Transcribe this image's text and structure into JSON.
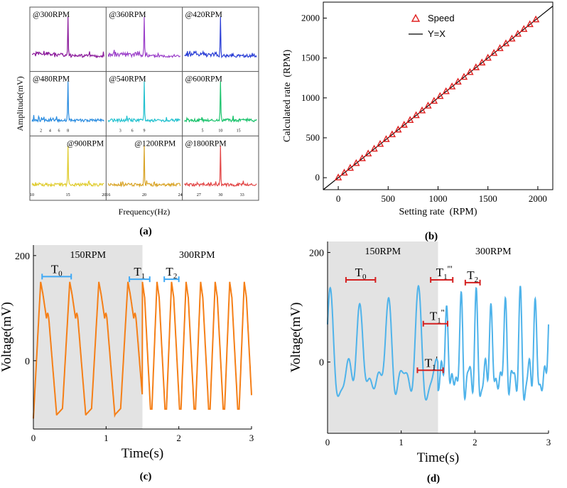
{
  "panel_labels": {
    "a": "(a)",
    "b": "(b)",
    "c": "(c)",
    "d": "(d)"
  },
  "chart_data": [
    {
      "id": "a",
      "type": "line",
      "xlabel": "Frequency(Hz)",
      "ylabel": "Amplitude(mV)",
      "layout": "3x3 small multiples",
      "subplots": [
        {
          "label": "@300RPM",
          "color": "#8b1a9b",
          "xlim": [
            0,
            10
          ],
          "peak_x": 5,
          "ticks": []
        },
        {
          "label": "@360RPM",
          "color": "#9b3fc9",
          "xlim": [
            0,
            12
          ],
          "peak_x": 6,
          "ticks": []
        },
        {
          "label": "@420RPM",
          "color": "#2b3fd6",
          "xlim": [
            0,
            14
          ],
          "peak_x": 7,
          "ticks": []
        },
        {
          "label": "@480RPM",
          "color": "#2a8ce0",
          "xlim": [
            0,
            16
          ],
          "peak_x": 8,
          "ticks": [
            "2",
            "4",
            "6",
            "8"
          ]
        },
        {
          "label": "@540RPM",
          "color": "#22c1cf",
          "xlim": [
            0,
            18
          ],
          "peak_x": 9,
          "ticks": [
            "3",
            "6",
            "9"
          ]
        },
        {
          "label": "@600RPM",
          "color": "#19c26b",
          "xlim": [
            0,
            20
          ],
          "peak_x": 10,
          "ticks": [
            "5",
            "10",
            "15"
          ]
        },
        {
          "label": "@900RPM",
          "color": "#e0cc2e",
          "xlim": [
            10,
            20
          ],
          "peak_x": 15,
          "ticks": [
            "10",
            "15",
            "20"
          ]
        },
        {
          "label": "@1200RPM",
          "color": "#d9a427",
          "xlim": [
            16,
            24
          ],
          "peak_x": 20,
          "ticks": [
            "16",
            "20",
            "24"
          ]
        },
        {
          "label": "@1800RPM",
          "color": "#e24646",
          "xlim": [
            25,
            35
          ],
          "peak_x": 30,
          "ticks": [
            "27",
            "30",
            "33"
          ]
        }
      ]
    },
    {
      "id": "b",
      "type": "scatter",
      "xlabel": "Setting rate  (RPM)",
      "ylabel": "Calculated rate  (RPM)",
      "xlim": [
        -150,
        2150
      ],
      "ylim": [
        -150,
        2200
      ],
      "xticks": [
        0,
        500,
        1000,
        1500,
        2000
      ],
      "yticks": [
        0,
        500,
        1000,
        1500,
        2000
      ],
      "legend": {
        "position": "top-center",
        "entries": [
          "Speed",
          "Y=X"
        ]
      },
      "series": [
        {
          "name": "Speed",
          "marker": "triangle",
          "color": "#e02020",
          "x": [
            0,
            60,
            120,
            180,
            240,
            300,
            360,
            420,
            480,
            540,
            600,
            660,
            720,
            780,
            840,
            900,
            960,
            1020,
            1080,
            1140,
            1200,
            1260,
            1320,
            1380,
            1440,
            1500,
            1560,
            1620,
            1680,
            1740,
            1800,
            1860,
            1920,
            1980
          ],
          "y": [
            0,
            60,
            120,
            180,
            240,
            300,
            360,
            420,
            480,
            540,
            600,
            660,
            720,
            780,
            840,
            900,
            960,
            1020,
            1080,
            1140,
            1200,
            1260,
            1320,
            1380,
            1440,
            1500,
            1560,
            1620,
            1680,
            1740,
            1800,
            1860,
            1920,
            1980
          ]
        },
        {
          "name": "Y=X",
          "type": "line",
          "color": "#000000",
          "x": [
            -150,
            2150
          ],
          "y": [
            -150,
            2150
          ]
        }
      ]
    },
    {
      "id": "c",
      "type": "line",
      "xlabel": "Time(s)",
      "ylabel": "Voltage(mV)",
      "xlim": [
        0,
        3
      ],
      "ylim": [
        -130,
        220
      ],
      "xticks": [
        0,
        1,
        2,
        3
      ],
      "yticks": [
        0,
        200
      ],
      "color": "#f57f17",
      "shaded_region": [
        0,
        1.5
      ],
      "regions": [
        {
          "label": "150RPM",
          "t_start": 0,
          "t_end": 1.5,
          "period": 0.4
        },
        {
          "label": "300RPM",
          "t_start": 1.5,
          "t_end": 3,
          "period": 0.2
        }
      ],
      "annotations": [
        {
          "label": "T",
          "sub": "0",
          "x1": 0.12,
          "x2": 0.52,
          "y": 160
        },
        {
          "label": "T",
          "sub": "1",
          "x1": 1.32,
          "x2": 1.6,
          "y": 155
        },
        {
          "label": "T",
          "sub": "2",
          "x1": 1.8,
          "x2": 2.0,
          "y": 155
        }
      ],
      "annotation_color": "#3fa9f5"
    },
    {
      "id": "d",
      "type": "line",
      "xlabel": "Time(s)",
      "ylabel": "Voltage(mV)",
      "xlim": [
        0,
        3
      ],
      "ylim": [
        -130,
        220
      ],
      "xticks": [
        0,
        1,
        2,
        3
      ],
      "yticks": [
        0,
        200
      ],
      "color": "#4fb3ea",
      "shaded_region": [
        0,
        1.5
      ],
      "regions": [
        {
          "label": "150RPM",
          "t_start": 0,
          "t_end": 1.5,
          "period": 0.4
        },
        {
          "label": "300RPM",
          "t_start": 1.5,
          "t_end": 3,
          "period": 0.2
        }
      ],
      "annotations": [
        {
          "label": "T",
          "sub": "0",
          "x1": 0.25,
          "x2": 0.65,
          "y": 150,
          "suffix": ""
        },
        {
          "label": "T",
          "sub": "1",
          "x1": 1.4,
          "x2": 1.7,
          "y": 150,
          "suffix": "'''"
        },
        {
          "label": "T",
          "sub": "2",
          "x1": 1.87,
          "x2": 2.07,
          "y": 145,
          "suffix": ""
        },
        {
          "label": "T",
          "sub": "1",
          "x1": 1.3,
          "x2": 1.63,
          "y": 70,
          "suffix": "''"
        },
        {
          "label": "T",
          "sub": "1",
          "x1": 1.22,
          "x2": 1.57,
          "y": -15,
          "suffix": "'"
        }
      ],
      "annotation_color": "#d42020"
    }
  ]
}
